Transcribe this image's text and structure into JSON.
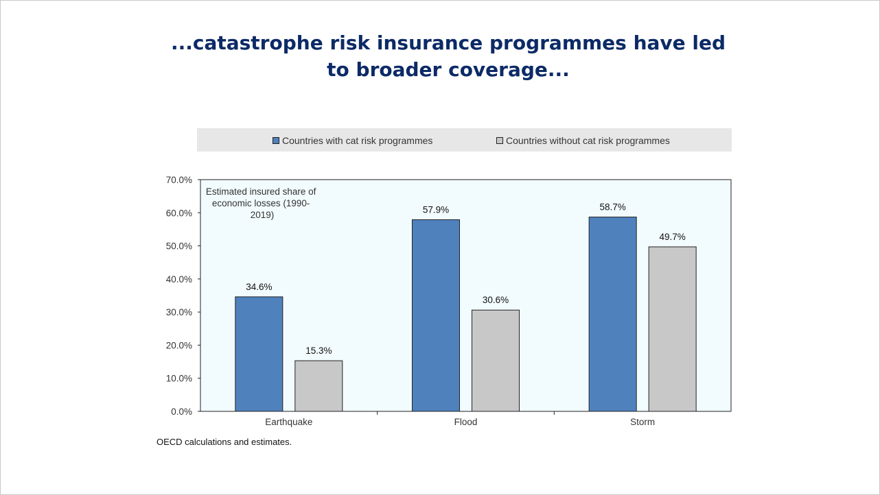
{
  "title": {
    "line1": "...catastrophe risk insurance programmes have led",
    "line2": "to broader coverage..."
  },
  "source_note": "OECD calculations and estimates.",
  "colors": {
    "series_with": "#4f81bd",
    "series_without": "#c8c8c8",
    "plot_bg": "#f2fbfd",
    "axis": "#222222"
  },
  "chart_data": {
    "type": "bar",
    "categories": [
      "Earthquake",
      "Flood",
      "Storm"
    ],
    "series": [
      {
        "name": "Countries with cat risk programmes",
        "values": [
          34.6,
          57.9,
          58.7
        ]
      },
      {
        "name": "Countries without cat risk programmes",
        "values": [
          15.3,
          30.6,
          49.7
        ]
      }
    ],
    "data_labels": [
      [
        "34.6%",
        "57.9%",
        "58.7%"
      ],
      [
        "15.3%",
        "30.6%",
        "49.7%"
      ]
    ],
    "y_ticks": [
      "0.0%",
      "10.0%",
      "20.0%",
      "30.0%",
      "40.0%",
      "50.0%",
      "60.0%",
      "70.0%"
    ],
    "ylim": [
      0,
      70
    ],
    "annotation": {
      "line1": "Estimated insured share of",
      "line2": "economic losses (1990-",
      "line3": "2019)"
    },
    "legend_placement": "top",
    "grid": false,
    "xlabel": "",
    "ylabel": ""
  }
}
